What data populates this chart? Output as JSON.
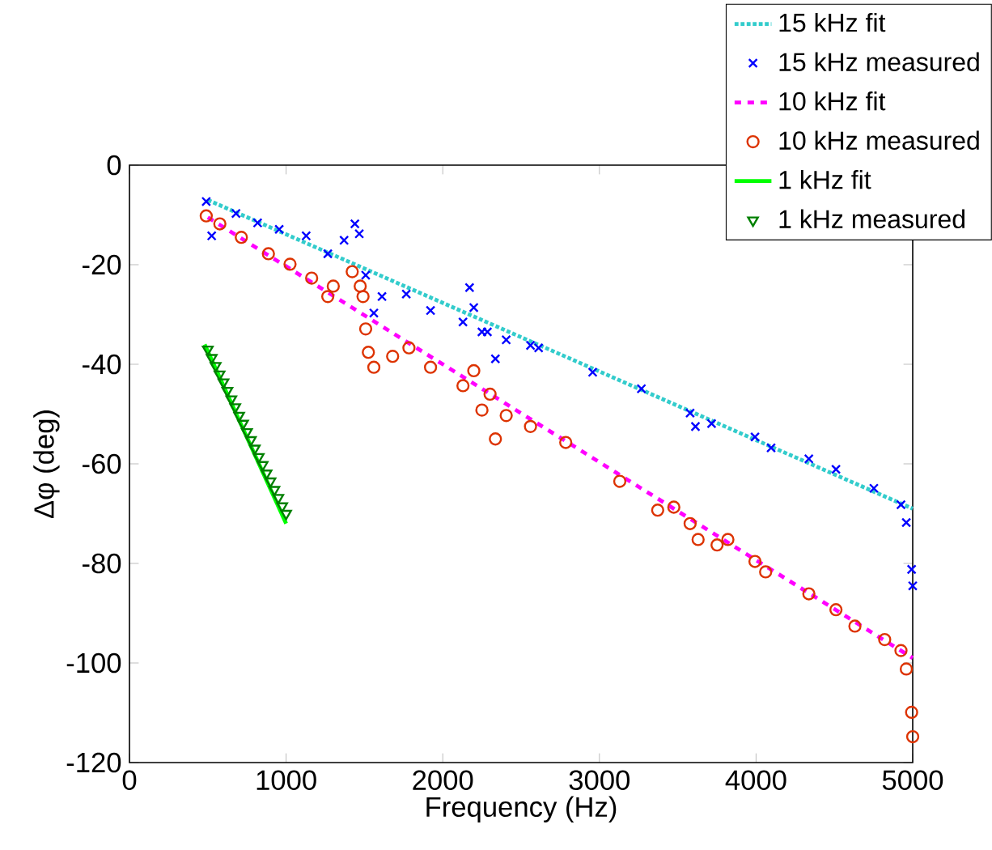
{
  "chart_data": {
    "type": "line",
    "xlabel": "Frequency (Hz)",
    "ylabel": "Δφ (deg)",
    "xlim": [
      0,
      5000
    ],
    "ylim": [
      -120,
      0
    ],
    "xticks": [
      0,
      1000,
      2000,
      3000,
      4000,
      5000
    ],
    "yticks": [
      -120,
      -100,
      -80,
      -60,
      -40,
      -20,
      0
    ],
    "legend": "top right",
    "series": [
      {
        "name": "15 kHz fit",
        "line_style": "dotted",
        "color": "#33cccc",
        "x": [
          500,
          5000
        ],
        "values": [
          -7,
          -69
        ]
      },
      {
        "name": "15 kHz measured",
        "type": "scatter",
        "marker": "cross",
        "color": "#0000ff",
        "x": [
          490,
          525,
          680,
          818,
          956,
          1128,
          1266,
          1370,
          1439,
          1467,
          1508,
          1560,
          1612,
          1767,
          1922,
          2129,
          2171,
          2198,
          2250,
          2285,
          2336,
          2405,
          2560,
          2612,
          2957,
          3268,
          3579,
          3613,
          3716,
          3993,
          4096,
          4337,
          4510,
          4752,
          4925,
          4959,
          4993,
          5000
        ],
        "values": [
          -7.3,
          -14.2,
          -9.7,
          -11.6,
          -12.9,
          -14.2,
          -17.8,
          -15.1,
          -11.8,
          -13.8,
          -22.1,
          -29.7,
          -26.4,
          -25.9,
          -29.2,
          -31.5,
          -24.6,
          -28.6,
          -33.5,
          -33.5,
          -38.9,
          -35.1,
          -36.2,
          -36.7,
          -41.6,
          -44.9,
          -49.8,
          -52.5,
          -51.9,
          -54.6,
          -56.8,
          -59.0,
          -61.1,
          -64.9,
          -68.2,
          -71.8,
          -81.2,
          -84.5
        ]
      },
      {
        "name": "10 kHz fit",
        "line_style": "dashed",
        "color": "#ff00ff",
        "x": [
          500,
          5000
        ],
        "values": [
          -10.5,
          -99
        ]
      },
      {
        "name": "10 kHz measured",
        "type": "scatter",
        "marker": "circle",
        "color": "#dd3300",
        "x": [
          490,
          577,
          714,
          887,
          1025,
          1163,
          1266,
          1301,
          1422,
          1473,
          1491,
          1508,
          1525,
          1560,
          1680,
          1784,
          1922,
          2129,
          2198,
          2250,
          2302,
          2336,
          2405,
          2560,
          2785,
          3130,
          3372,
          3475,
          3579,
          3630,
          3751,
          3820,
          3993,
          4061,
          4337,
          4510,
          4631,
          4821,
          4925,
          4959,
          4993,
          5000
        ],
        "values": [
          -10.2,
          -11.8,
          -14.5,
          -17.8,
          -19.9,
          -22.7,
          -26.4,
          -24.3,
          -21.4,
          -24.3,
          -26.4,
          -32.9,
          -37.6,
          -40.6,
          -38.4,
          -36.7,
          -40.6,
          -44.3,
          -41.3,
          -49.2,
          -46,
          -55,
          -50.3,
          -52.5,
          -55.7,
          -63.5,
          -69.3,
          -68.7,
          -72,
          -75.2,
          -76.3,
          -75.2,
          -79.6,
          -81.7,
          -86.1,
          -89.3,
          -92.6,
          -95.3,
          -97.5,
          -101.2,
          -109.9,
          -114.8
        ]
      },
      {
        "name": "1 kHz fit",
        "line_style": "solid",
        "color": "#00ff00",
        "x": [
          480,
          1000
        ],
        "values": [
          -36,
          -72
        ]
      },
      {
        "name": "1 kHz measured",
        "type": "scatter",
        "marker": "triangle",
        "color": "#008000",
        "x": [
          500,
          525,
          550,
          575,
          600,
          625,
          650,
          675,
          700,
          725,
          750,
          775,
          800,
          825,
          850,
          875,
          900,
          925,
          950,
          975,
          1000
        ],
        "values": [
          -37,
          -38.7,
          -40.3,
          -42,
          -43.6,
          -45.3,
          -47,
          -48.6,
          -50.3,
          -51.9,
          -53.6,
          -55.2,
          -56.9,
          -58.6,
          -60.2,
          -61.9,
          -63.5,
          -65.2,
          -66.8,
          -68.5,
          -70
        ]
      }
    ]
  }
}
